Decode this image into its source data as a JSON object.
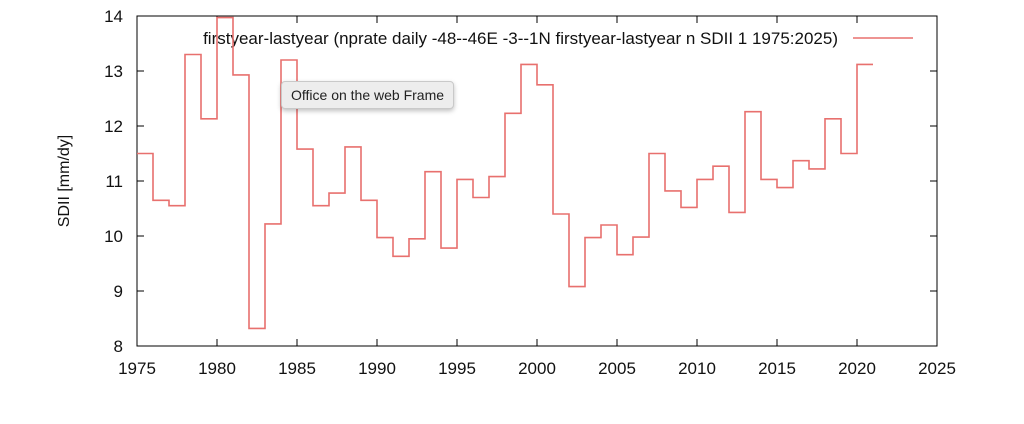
{
  "chart_data": {
    "type": "line",
    "step": true,
    "legend": "firstyear-lastyear (nprate daily -48--46E -3--1N firstyear-lastyear n SDII 1 1975:2025)",
    "legend_position": "top-right",
    "ylabel": "SDII [mm/dy]",
    "xlabel": "",
    "xlim": [
      1975,
      2025
    ],
    "ylim": [
      8,
      14
    ],
    "xticks": [
      "1975",
      "1980",
      "1985",
      "1990",
      "1995",
      "2000",
      "2005",
      "2010",
      "2015",
      "2020",
      "2025"
    ],
    "yticks": [
      "8",
      "9",
      "10",
      "11",
      "12",
      "13",
      "14"
    ],
    "line_color": "#e8706e",
    "grid": false,
    "x": [
      1975,
      1976,
      1977,
      1978,
      1979,
      1980,
      1981,
      1982,
      1983,
      1984,
      1985,
      1986,
      1987,
      1988,
      1989,
      1990,
      1991,
      1992,
      1993,
      1994,
      1995,
      1996,
      1997,
      1998,
      1999,
      2000,
      2001,
      2002,
      2003,
      2004,
      2005,
      2006,
      2007,
      2008,
      2009,
      2010,
      2011,
      2012,
      2013,
      2014,
      2015,
      2016,
      2017,
      2018,
      2019,
      2020
    ],
    "values": [
      11.5,
      10.65,
      10.55,
      13.3,
      12.13,
      13.97,
      12.93,
      8.32,
      10.22,
      13.2,
      11.58,
      10.55,
      10.78,
      11.62,
      10.65,
      9.97,
      9.63,
      9.95,
      11.17,
      9.78,
      11.03,
      10.7,
      11.08,
      12.23,
      13.12,
      12.75,
      10.4,
      9.08,
      9.97,
      10.2,
      9.66,
      9.98,
      11.5,
      10.82,
      10.52,
      11.03,
      11.27,
      10.43,
      12.26,
      11.03,
      10.88,
      11.37,
      11.22,
      12.13,
      11.5,
      13.12
    ]
  },
  "tooltip": {
    "text": "Office on the web Frame"
  }
}
